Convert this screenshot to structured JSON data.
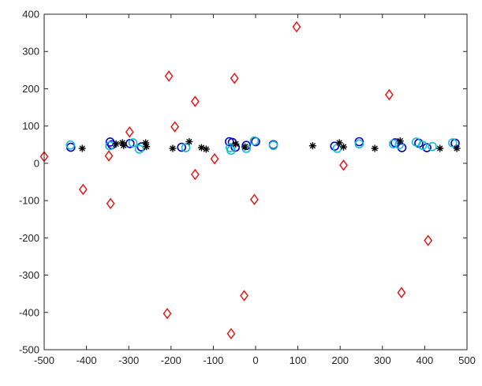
{
  "chart_data": {
    "type": "scatter",
    "title": "",
    "xlabel": "",
    "ylabel": "",
    "xlim": [
      -500,
      500
    ],
    "ylim": [
      -500,
      400
    ],
    "xticks": [
      -500,
      -400,
      -300,
      -200,
      -100,
      0,
      100,
      200,
      300,
      400,
      500
    ],
    "yticks": [
      -500,
      -400,
      -300,
      -200,
      -100,
      0,
      100,
      200,
      300,
      400
    ],
    "grid": false,
    "legend": "none",
    "series": [
      {
        "marker": "diamond",
        "color": "#e31a1c",
        "points": [
          [
            -500,
            18
          ],
          [
            -408,
            -70
          ],
          [
            -347,
            20
          ],
          [
            -343,
            -108
          ],
          [
            -298,
            84
          ],
          [
            -205,
            234
          ],
          [
            -209,
            -403
          ],
          [
            -191,
            98
          ],
          [
            -143,
            166
          ],
          [
            -143,
            -30
          ],
          [
            -97,
            12
          ],
          [
            -50,
            228
          ],
          [
            -58,
            -457
          ],
          [
            -27,
            -355
          ],
          [
            -3,
            -97
          ],
          [
            97,
            366
          ],
          [
            208,
            -5
          ],
          [
            316,
            184
          ],
          [
            345,
            -347
          ],
          [
            408,
            -207
          ]
        ]
      },
      {
        "marker": "circle",
        "color": "#0000cc",
        "points": [
          [
            -437,
            43
          ],
          [
            -344,
            57
          ],
          [
            -340,
            50
          ],
          [
            -297,
            53
          ],
          [
            -270,
            44
          ],
          [
            -175,
            43
          ],
          [
            -62,
            58
          ],
          [
            -55,
            56
          ],
          [
            -48,
            43
          ],
          [
            -22,
            48
          ],
          [
            0,
            58
          ],
          [
            42,
            50
          ],
          [
            187,
            46
          ],
          [
            245,
            58
          ],
          [
            330,
            55
          ],
          [
            346,
            42
          ],
          [
            386,
            54
          ],
          [
            405,
            42
          ],
          [
            472,
            54
          ]
        ]
      },
      {
        "marker": "circle",
        "color": "#17becf",
        "points": [
          [
            -438,
            49
          ],
          [
            -345,
            47
          ],
          [
            -290,
            55
          ],
          [
            -275,
            38
          ],
          [
            -165,
            42
          ],
          [
            -60,
            42
          ],
          [
            -58,
            35
          ],
          [
            -22,
            40
          ],
          [
            -3,
            60
          ],
          [
            42,
            48
          ],
          [
            193,
            40
          ],
          [
            245,
            52
          ],
          [
            326,
            52
          ],
          [
            340,
            50
          ],
          [
            380,
            57
          ],
          [
            395,
            48
          ],
          [
            418,
            45
          ],
          [
            466,
            55
          ]
        ]
      },
      {
        "marker": "asterisk",
        "color": "#000000",
        "points": [
          [
            -410,
            40
          ],
          [
            -330,
            52
          ],
          [
            -315,
            55
          ],
          [
            -312,
            48
          ],
          [
            -260,
            55
          ],
          [
            -258,
            45
          ],
          [
            -196,
            40
          ],
          [
            -157,
            58
          ],
          [
            -128,
            42
          ],
          [
            -117,
            38
          ],
          [
            -47,
            52
          ],
          [
            -25,
            44
          ],
          [
            135,
            47
          ],
          [
            198,
            55
          ],
          [
            208,
            44
          ],
          [
            282,
            40
          ],
          [
            342,
            60
          ],
          [
            436,
            40
          ],
          [
            476,
            40
          ]
        ]
      }
    ]
  }
}
